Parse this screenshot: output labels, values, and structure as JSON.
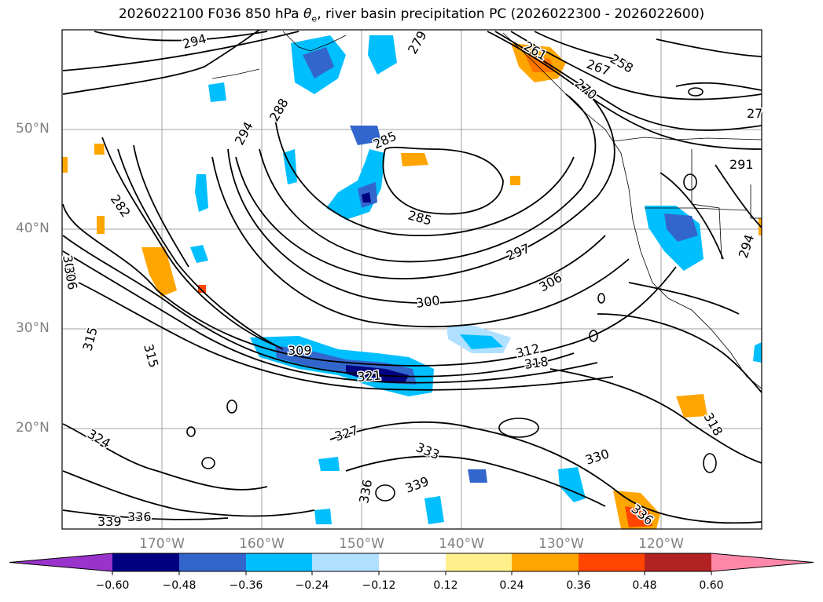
{
  "title_main": "2026022100 F036 850 hPa ",
  "title_symbol": "θ",
  "title_sub": "e",
  "title_rest": ", river basin precipitation PC (2026022300 - 2026022600)",
  "map": {
    "lat_labels": [
      "50°N",
      "40°N",
      "30°N",
      "20°N"
    ],
    "lon_labels": [
      "170°W",
      "160°W",
      "150°W",
      "140°W",
      "130°W",
      "120°W"
    ],
    "contour_labels": [
      "294",
      "279",
      "261",
      "267",
      "258",
      "270",
      "288",
      "294",
      "285",
      "285",
      "282",
      "27",
      "291",
      "294",
      "306",
      "297",
      "306",
      "300",
      "309",
      "312",
      "318",
      "315",
      "315",
      "321",
      "327",
      "333",
      "324",
      "330",
      "336",
      "339",
      "339",
      "336",
      "318",
      "336",
      "306"
    ]
  },
  "colorbar": {
    "colors": [
      "#9933cc",
      "#000080",
      "#3366cc",
      "#00bfff",
      "#b0e0ff",
      "#ffffff",
      "#fff08c",
      "#ffa500",
      "#ff4500",
      "#b22222",
      "#ff88aa"
    ],
    "tick_labels": [
      "−0.60",
      "−0.48",
      "−0.36",
      "−0.24",
      "−0.12",
      "0.12",
      "0.24",
      "0.36",
      "0.48",
      "0.60"
    ]
  }
}
